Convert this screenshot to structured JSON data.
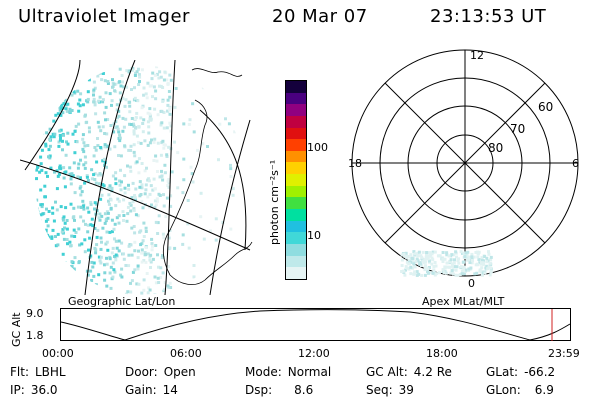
{
  "header": {
    "instrument": "Ultraviolet Imager",
    "date": "20 Mar 07",
    "time": "23:13:53 UT"
  },
  "colorbar": {
    "unit_label": "photon cm⁻²s⁻¹",
    "ticks": [
      "100",
      "10"
    ],
    "colors": [
      "#e6f4f4",
      "#bfe9ea",
      "#8fdde0",
      "#40d8d8",
      "#20c0e0",
      "#00e0a0",
      "#40e040",
      "#a0f000",
      "#e0f000",
      "#ffd000",
      "#ff9000",
      "#ff4000",
      "#e01010",
      "#c00040",
      "#900080",
      "#4a0080",
      "#14003c"
    ]
  },
  "geo_map": {
    "label": "Geographic Lat/Lon"
  },
  "polar": {
    "label": "Apex MLat/MLT",
    "mlt_labels": {
      "top": "12",
      "left": "18",
      "right": "6",
      "bottom": "0"
    },
    "lat_labels": [
      "60",
      "70",
      "80"
    ]
  },
  "altitude_strip": {
    "axis_name": "GC Alt",
    "y_ticks": [
      "9.0",
      "1.8"
    ],
    "x_ticks": [
      "00:00",
      "06:00",
      "12:00",
      "18:00",
      "23:59"
    ],
    "marker_color": "#d02020"
  },
  "info": {
    "filter": {
      "label": "Flt:",
      "value": "LBHL"
    },
    "door": {
      "label": "Door:",
      "value": "Open"
    },
    "mode": {
      "label": "Mode:",
      "value": "Normal"
    },
    "gc_alt": {
      "label": "GC Alt:",
      "value": "4.2 Re"
    },
    "glat": {
      "label": "GLat:",
      "value": "-66.2"
    },
    "ip": {
      "label": "IP:",
      "value": "36.0"
    },
    "gain": {
      "label": "Gain:",
      "value": "14"
    },
    "dsp": {
      "label": "Dsp:",
      "value": "8.6"
    },
    "seq": {
      "label": "Seq:",
      "value": "39"
    },
    "glon": {
      "label": "GLon:",
      "value": "6.9"
    }
  }
}
